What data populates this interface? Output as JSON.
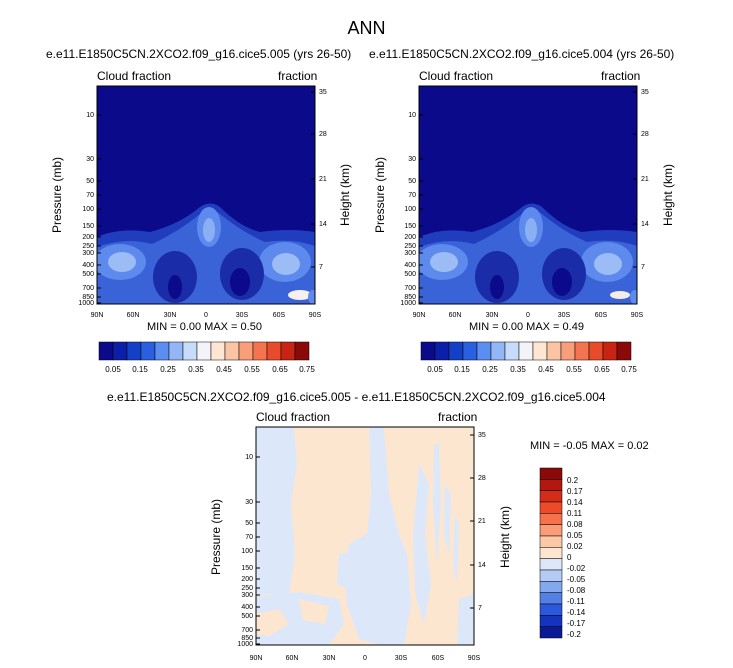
{
  "figure": {
    "title": "ANN"
  },
  "panels": [
    {
      "case_title": "e.e11.E1850C5CN.2XCO2.f09_g16.cice5.005 (yrs 26-50)",
      "left_label": "Cloud fraction",
      "right_label": "fraction",
      "y_label": "Pressure (mb)",
      "y2_label": "Height (km)",
      "stats": "MIN =  0.00   MAX =   0.50"
    },
    {
      "case_title": "e.e11.E1850C5CN.2XCO2.f09_g16.cice5.004 (yrs 26-50)",
      "left_label": "Cloud fraction",
      "right_label": "fraction",
      "y_label": "Pressure (mb)",
      "y2_label": "Height (km)",
      "stats": "MIN =  0.00   MAX =  0.49"
    },
    {
      "case_title": "e.e11.E1850C5CN.2XCO2.f09_g16.cice5.005 - e.e11.E1850C5CN.2XCO2.f09_g16.cice5.004",
      "left_label": "Cloud fraction",
      "right_label": "fraction",
      "y_label": "Pressure (mb)",
      "y2_label": "Height (km)",
      "stats": "MIN =  -0.05   MAX =    0.02"
    }
  ],
  "axes": {
    "pressure_ticks": [
      "10",
      "30",
      "50",
      "70",
      "100",
      "150",
      "200",
      "250",
      "300",
      "400",
      "500",
      "700",
      "850",
      "1000"
    ],
    "height_ticks": [
      "35",
      "28",
      "21",
      "14",
      "7"
    ],
    "lat_ticks": [
      "90N",
      "60N",
      "30N",
      "0",
      "30S",
      "60S",
      "90S"
    ]
  },
  "colorbar_top": {
    "labels": [
      "0.05",
      "0.15",
      "0.25",
      "0.35",
      "0.45",
      "0.55",
      "0.65",
      "0.75"
    ],
    "colors": [
      "#0a0a8a",
      "#0c1fa8",
      "#1440c8",
      "#2a60e0",
      "#5a8ef0",
      "#92b6f6",
      "#c6dcfa",
      "#f4f4f8",
      "#fde6d2",
      "#fbc4a4",
      "#f89e7a",
      "#f47450",
      "#e84a2c",
      "#c82414",
      "#8a0a0a"
    ]
  },
  "colorbar_diff": {
    "labels": [
      "0.2",
      "0.17",
      "0.14",
      "0.11",
      "0.08",
      "0.05",
      "0.02",
      "0",
      "-0.02",
      "-0.05",
      "-0.08",
      "-0.11",
      "-0.14",
      "-0.17",
      "-0.2"
    ],
    "colors": [
      "#8a0a0a",
      "#b01810",
      "#d42c18",
      "#ec4a28",
      "#f6724c",
      "#fa9c78",
      "#fcc8a8",
      "#fde6d0",
      "#dce8fa",
      "#b4ccf4",
      "#84a8ee",
      "#5480e6",
      "#2c58dc",
      "#1434c0",
      "#0a1a96"
    ]
  }
}
